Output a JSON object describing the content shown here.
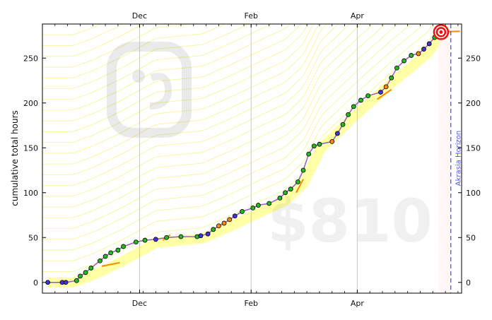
{
  "chart_data": {
    "type": "line",
    "ylabel": "cumulative total hours",
    "xlabel": "",
    "x_ticks": [
      "Dec",
      "Feb",
      "Apr"
    ],
    "y_ticks": [
      0,
      50,
      100,
      150,
      200,
      250
    ],
    "ylim": [
      -12,
      288
    ],
    "xlim": [
      "2014-10-08",
      "2015-05-29"
    ],
    "grid": "vertical at month ticks",
    "watermark_amount": "$810",
    "horizon_label": "Akrasia Horizon",
    "horizon_date": "2015-05-23",
    "today_date": "2015-05-16",
    "colors": {
      "datapoint_green": "#22bb22",
      "datapoint_blue": "#4433dd",
      "datapoint_orange": "#ff8800",
      "purple_line": "#9966bb",
      "road_yellow": "#ffff88",
      "guideline": "#eeee55",
      "horizon": "#5555dd",
      "bullseye": "#ee1111"
    },
    "datapoints": [
      {
        "x": "2014-10-11",
        "y": 0,
        "c": "b"
      },
      {
        "x": "2014-10-19",
        "y": 0,
        "c": "b"
      },
      {
        "x": "2014-10-21",
        "y": 0,
        "c": "b"
      },
      {
        "x": "2014-10-27",
        "y": 2,
        "c": "g"
      },
      {
        "x": "2014-10-29",
        "y": 7,
        "c": "g"
      },
      {
        "x": "2014-11-01",
        "y": 11,
        "c": "g"
      },
      {
        "x": "2014-11-04",
        "y": 16,
        "c": "g"
      },
      {
        "x": "2014-11-09",
        "y": 24,
        "c": "g"
      },
      {
        "x": "2014-11-12",
        "y": 29,
        "c": "g"
      },
      {
        "x": "2014-11-15",
        "y": 33,
        "c": "g"
      },
      {
        "x": "2014-11-19",
        "y": 36,
        "c": "g"
      },
      {
        "x": "2014-11-22",
        "y": 40,
        "c": "g"
      },
      {
        "x": "2014-11-29",
        "y": 45,
        "c": "g"
      },
      {
        "x": "2014-12-04",
        "y": 47,
        "c": "g"
      },
      {
        "x": "2014-12-10",
        "y": 48,
        "c": "b"
      },
      {
        "x": "2014-12-16",
        "y": 50,
        "c": "g"
      },
      {
        "x": "2014-12-24",
        "y": 51,
        "c": "g"
      },
      {
        "x": "2015-01-02",
        "y": 51,
        "c": "g"
      },
      {
        "x": "2015-01-04",
        "y": 52,
        "c": "b"
      },
      {
        "x": "2015-01-08",
        "y": 54,
        "c": "b"
      },
      {
        "x": "2015-01-11",
        "y": 59,
        "c": "g"
      },
      {
        "x": "2015-01-14",
        "y": 63,
        "c": "o"
      },
      {
        "x": "2015-01-17",
        "y": 66,
        "c": "o"
      },
      {
        "x": "2015-01-20",
        "y": 70,
        "c": "o"
      },
      {
        "x": "2015-01-23",
        "y": 74,
        "c": "b"
      },
      {
        "x": "2015-01-27",
        "y": 79,
        "c": "g"
      },
      {
        "x": "2015-02-02",
        "y": 83,
        "c": "g"
      },
      {
        "x": "2015-02-05",
        "y": 86,
        "c": "g"
      },
      {
        "x": "2015-02-11",
        "y": 88,
        "c": "g"
      },
      {
        "x": "2015-02-17",
        "y": 94,
        "c": "g"
      },
      {
        "x": "2015-02-20",
        "y": 100,
        "c": "g"
      },
      {
        "x": "2015-02-23",
        "y": 104,
        "c": "g"
      },
      {
        "x": "2015-02-27",
        "y": 112,
        "c": "g"
      },
      {
        "x": "2015-03-02",
        "y": 125,
        "c": "g"
      },
      {
        "x": "2015-03-05",
        "y": 143,
        "c": "g"
      },
      {
        "x": "2015-03-08",
        "y": 152,
        "c": "g"
      },
      {
        "x": "2015-03-11",
        "y": 154,
        "c": "g"
      },
      {
        "x": "2015-03-18",
        "y": 157,
        "c": "o"
      },
      {
        "x": "2015-03-21",
        "y": 166,
        "c": "b"
      },
      {
        "x": "2015-03-24",
        "y": 176,
        "c": "g"
      },
      {
        "x": "2015-03-27",
        "y": 187,
        "c": "g"
      },
      {
        "x": "2015-03-30",
        "y": 196,
        "c": "g"
      },
      {
        "x": "2015-04-03",
        "y": 203,
        "c": "g"
      },
      {
        "x": "2015-04-07",
        "y": 208,
        "c": "g"
      },
      {
        "x": "2015-04-14",
        "y": 212,
        "c": "b"
      },
      {
        "x": "2015-04-17",
        "y": 218,
        "c": "o"
      },
      {
        "x": "2015-04-20",
        "y": 228,
        "c": "g"
      },
      {
        "x": "2015-04-23",
        "y": 239,
        "c": "g"
      },
      {
        "x": "2015-04-27",
        "y": 247,
        "c": "g"
      },
      {
        "x": "2015-05-01",
        "y": 253,
        "c": "g"
      },
      {
        "x": "2015-05-05",
        "y": 255,
        "c": "o"
      },
      {
        "x": "2015-05-08",
        "y": 260,
        "c": "b"
      },
      {
        "x": "2015-05-11",
        "y": 266,
        "c": "b"
      },
      {
        "x": "2015-05-14",
        "y": 273,
        "c": "g"
      },
      {
        "x": "2015-05-16",
        "y": 277,
        "c": "b"
      }
    ],
    "road": [
      {
        "x": "2014-10-11",
        "y": 0
      },
      {
        "x": "2014-10-25",
        "y": 0
      },
      {
        "x": "2014-11-05",
        "y": 8
      },
      {
        "x": "2014-11-20",
        "y": 22
      },
      {
        "x": "2014-12-10",
        "y": 44
      },
      {
        "x": "2015-01-05",
        "y": 49
      },
      {
        "x": "2015-01-20",
        "y": 62
      },
      {
        "x": "2015-02-08",
        "y": 80
      },
      {
        "x": "2015-02-20",
        "y": 91
      },
      {
        "x": "2015-03-02",
        "y": 110
      },
      {
        "x": "2015-03-12",
        "y": 150
      },
      {
        "x": "2015-04-01",
        "y": 188
      },
      {
        "x": "2015-04-20",
        "y": 222
      },
      {
        "x": "2015-05-10",
        "y": 255
      },
      {
        "x": "2015-05-16",
        "y": 272
      }
    ],
    "derail_segments": [
      [
        {
          "x": "2014-11-10",
          "y": 18
        },
        {
          "x": "2014-11-20",
          "y": 22
        }
      ],
      [
        {
          "x": "2014-12-14",
          "y": 47
        },
        {
          "x": "2014-12-18",
          "y": 53
        }
      ],
      [
        {
          "x": "2015-02-26",
          "y": 100
        },
        {
          "x": "2015-03-02",
          "y": 115
        }
      ],
      [
        {
          "x": "2015-04-12",
          "y": 204
        },
        {
          "x": "2015-04-20",
          "y": 215
        }
      ],
      [
        {
          "x": "2015-05-15",
          "y": 279
        },
        {
          "x": "2015-05-28",
          "y": 280
        }
      ]
    ]
  }
}
